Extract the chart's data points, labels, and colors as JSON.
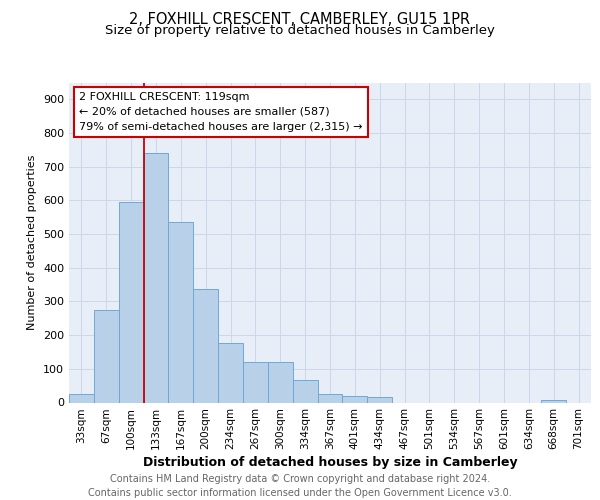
{
  "title": "2, FOXHILL CRESCENT, CAMBERLEY, GU15 1PR",
  "subtitle": "Size of property relative to detached houses in Camberley",
  "xlabel": "Distribution of detached houses by size in Camberley",
  "ylabel": "Number of detached properties",
  "categories": [
    "33sqm",
    "67sqm",
    "100sqm",
    "133sqm",
    "167sqm",
    "200sqm",
    "234sqm",
    "267sqm",
    "300sqm",
    "334sqm",
    "367sqm",
    "401sqm",
    "434sqm",
    "467sqm",
    "501sqm",
    "534sqm",
    "567sqm",
    "601sqm",
    "634sqm",
    "668sqm",
    "701sqm"
  ],
  "values": [
    25,
    275,
    595,
    740,
    535,
    338,
    178,
    120,
    120,
    68,
    25,
    20,
    15,
    0,
    0,
    0,
    0,
    0,
    0,
    8,
    0
  ],
  "bar_color": "#b8d0e8",
  "bar_edge_color": "#6ea8d8",
  "vline_color": "#cc0000",
  "vline_x_index": 2.5,
  "annotation_line1": "2 FOXHILL CRESCENT: 119sqm",
  "annotation_line2": "← 20% of detached houses are smaller (587)",
  "annotation_line3": "79% of semi-detached houses are larger (2,315) →",
  "annotation_box_color": "#ffffff",
  "annotation_box_edge": "#cc0000",
  "ylim": [
    0,
    950
  ],
  "yticks": [
    0,
    100,
    200,
    300,
    400,
    500,
    600,
    700,
    800,
    900
  ],
  "grid_color": "#ccd8ea",
  "background_color": "#e8eef8",
  "footer_line1": "Contains HM Land Registry data © Crown copyright and database right 2024.",
  "footer_line2": "Contains public sector information licensed under the Open Government Licence v3.0.",
  "title_fontsize": 10.5,
  "subtitle_fontsize": 9.5,
  "ylabel_fontsize": 8,
  "xlabel_fontsize": 9,
  "tick_fontsize": 7.5,
  "annotation_fontsize": 8,
  "footer_fontsize": 7
}
